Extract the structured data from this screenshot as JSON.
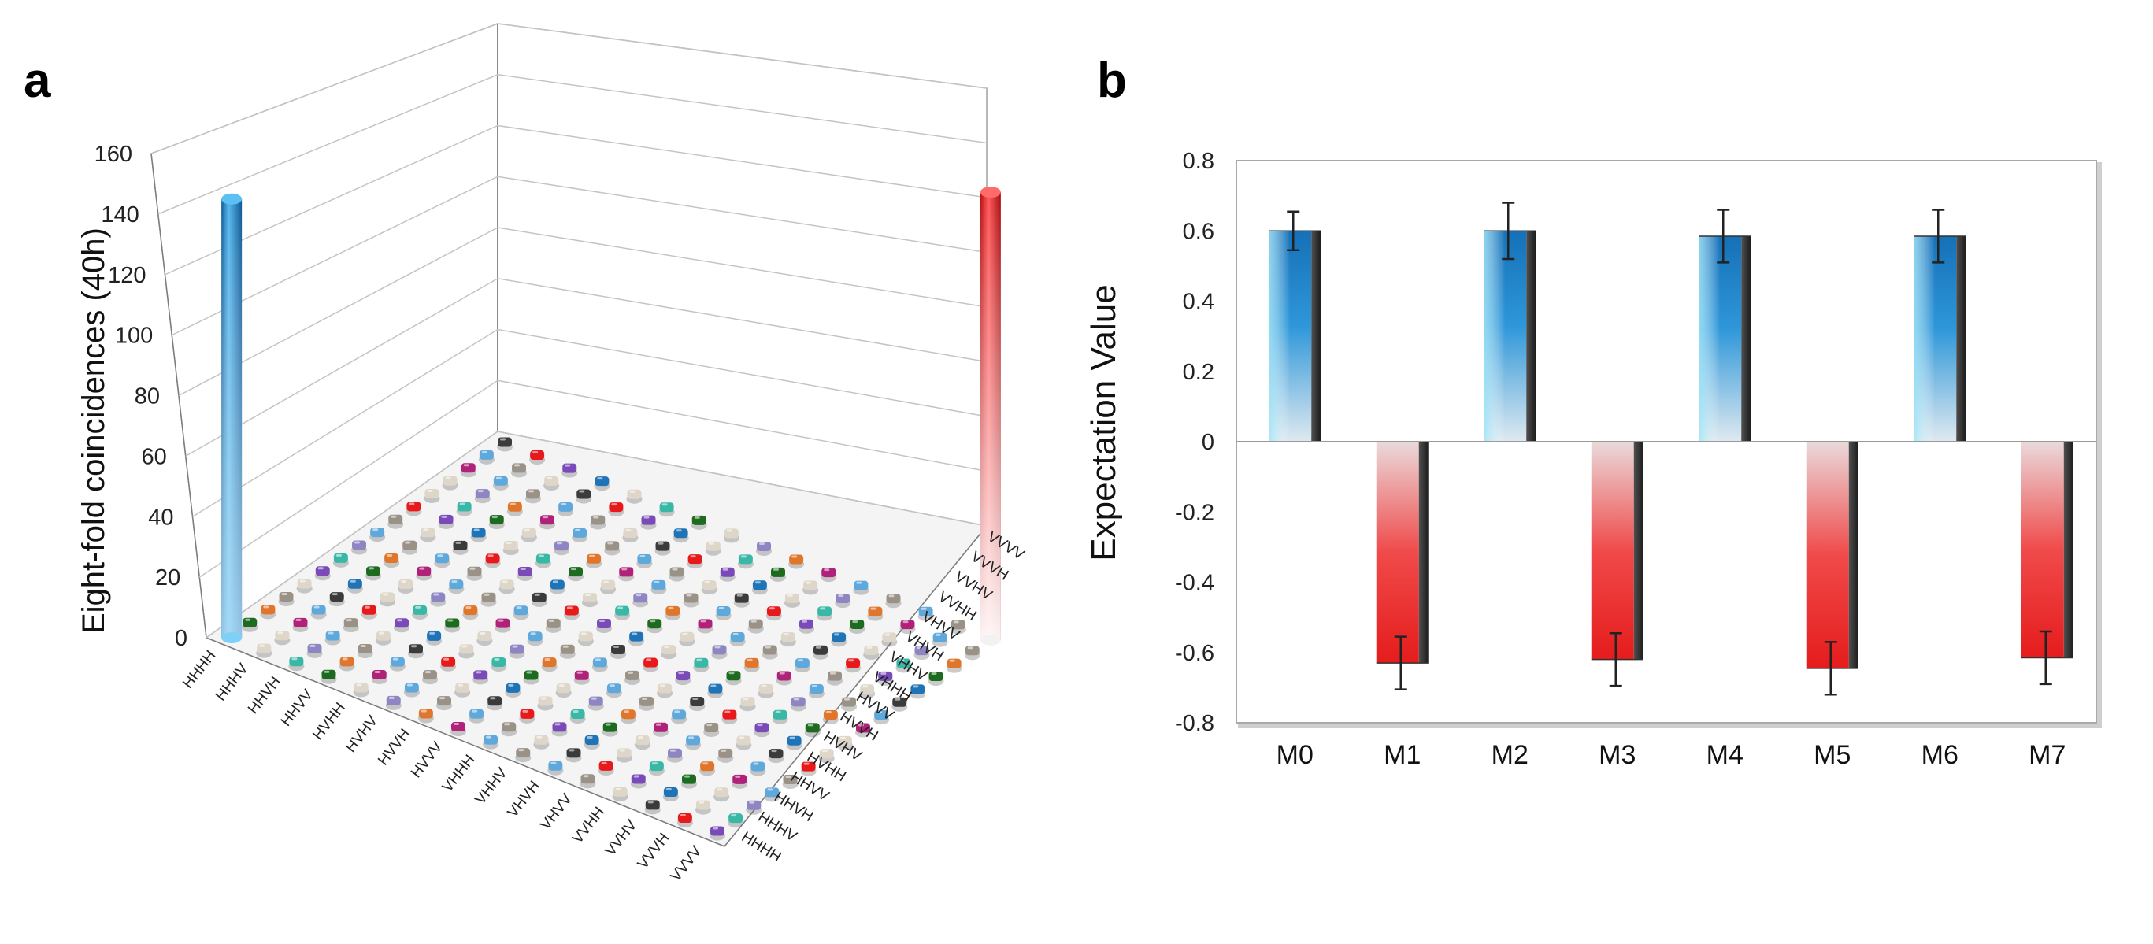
{
  "panels": {
    "a": "a",
    "b": "b"
  },
  "chart_data": [
    {
      "type": "bar3d",
      "panel": "a",
      "title": "",
      "ylabel": "Eight-fold coincidences (40h)",
      "zlim": [
        0,
        160
      ],
      "z_ticks": [
        "0",
        "20",
        "40",
        "60",
        "80",
        "100",
        "120",
        "140",
        "160"
      ],
      "z_tick_values": [
        0,
        20,
        40,
        60,
        80,
        100,
        120,
        140,
        160
      ],
      "categories_x": [
        "HHHH",
        "HHHV",
        "HHVH",
        "HHVV",
        "HVHH",
        "HVHV",
        "HVVH",
        "HVVV",
        "VHHH",
        "VHHV",
        "VHVH",
        "VHVV",
        "VVHH",
        "VVHV",
        "VVVH",
        "VVVV"
      ],
      "categories_y": [
        "HHHH",
        "HHHV",
        "HHVH",
        "HHVV",
        "HVHH",
        "HVHV",
        "HVVH",
        "HVVV",
        "VHHH",
        "VHHV",
        "VHVH",
        "VHVV",
        "VVHH",
        "VVHV",
        "VVVH",
        "VVVV"
      ],
      "large_bars": [
        {
          "x": "HHHH",
          "y": "HHHH",
          "value": 145,
          "color": "#1f7fc2"
        },
        {
          "x": "VVVV",
          "y": "VVVV",
          "value": 148,
          "color": "#e8191b"
        }
      ],
      "small_value": 1,
      "row_colors": [
        "#1f73b7",
        "#ded6c8",
        "#3ab8a6",
        "#1d6b1e",
        "#ded6c8",
        "#8d86c2",
        "#e0762c",
        "#b0227a",
        "#5fa8dc",
        "#9b9287",
        "#5fa8dc",
        "#9b9287",
        "#ded6c8",
        "#3b3b3b",
        "#e8191b",
        "#7a4bb8"
      ],
      "colors": {
        "blue": "#1f7fc2",
        "red": "#e8191b"
      }
    },
    {
      "type": "bar",
      "panel": "b",
      "title": "",
      "xlabel": "",
      "ylabel": "Expectation Value",
      "categories": [
        "M0",
        "M1",
        "M2",
        "M3",
        "M4",
        "M5",
        "M6",
        "M7"
      ],
      "values": [
        0.6,
        -0.63,
        0.6,
        -0.62,
        0.585,
        -0.645,
        0.585,
        -0.615
      ],
      "errors": [
        0.055,
        0.075,
        0.08,
        0.075,
        0.075,
        0.075,
        0.075,
        0.075
      ],
      "ylim": [
        -0.8,
        0.8
      ],
      "y_ticks": [
        "0.8",
        "0.6",
        "0.4",
        "0.2",
        "0",
        "-0.2",
        "-0.4",
        "-0.6",
        "-0.8"
      ],
      "y_tick_values": [
        0.8,
        0.6,
        0.4,
        0.2,
        0,
        -0.2,
        -0.4,
        -0.6,
        -0.8
      ],
      "colors": {
        "positive": "#1570b8",
        "negative": "#e51c1c"
      },
      "grid": false,
      "legend": "none"
    }
  ]
}
